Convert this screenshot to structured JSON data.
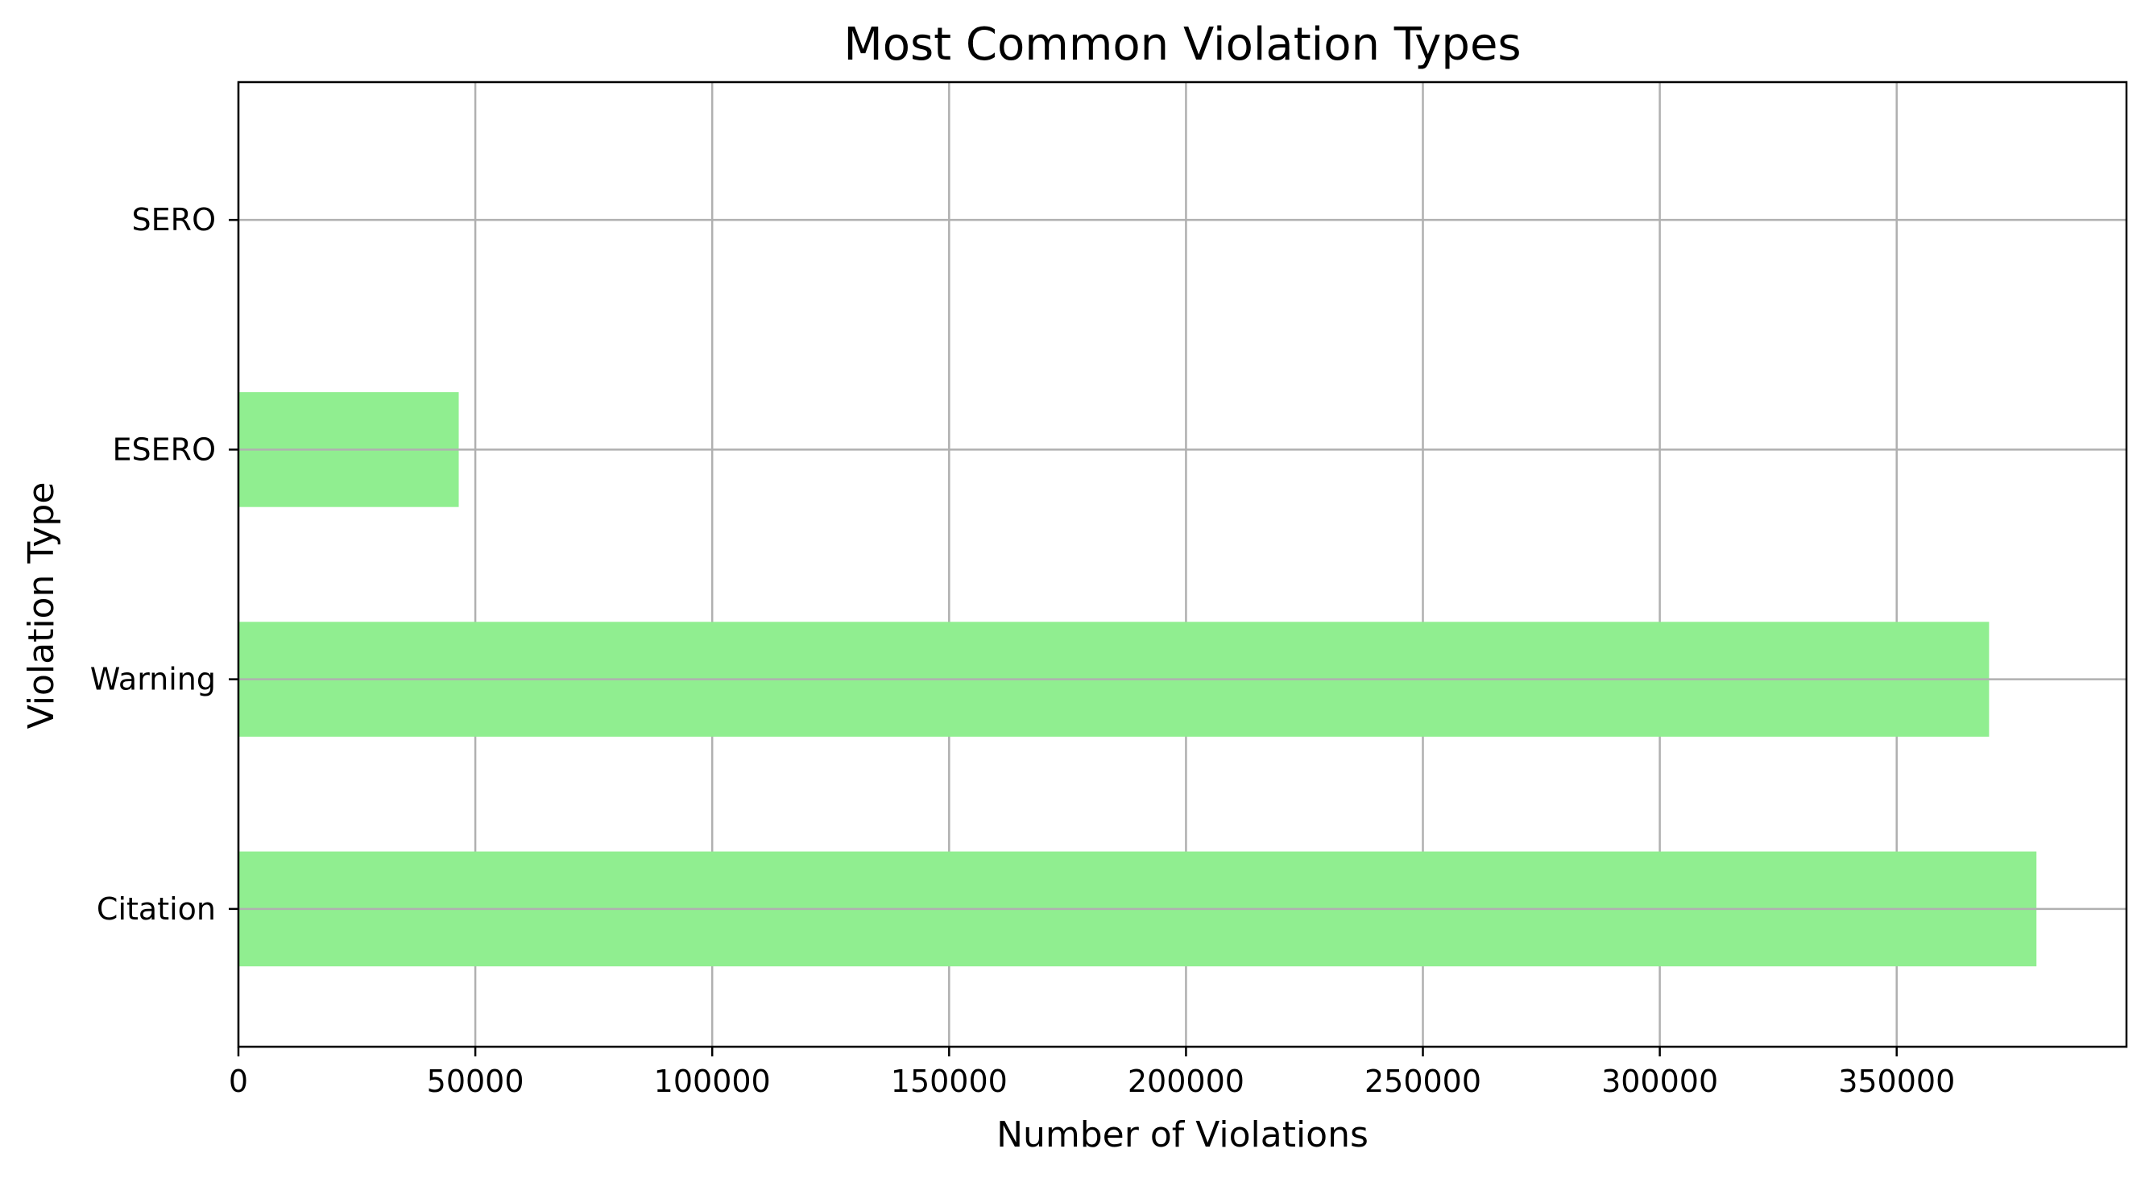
{
  "chart_data": {
    "type": "bar",
    "orientation": "horizontal",
    "title": "Most Common Violation Types",
    "xlabel": "Number of Violations",
    "ylabel": "Violation Type",
    "categories": [
      "Citation",
      "Warning",
      "ESERO",
      "SERO"
    ],
    "values": [
      379500,
      369500,
      46500,
      0
    ],
    "xlim": [
      0,
      398500
    ],
    "xticks": [
      "0",
      "50000",
      "100000",
      "150000",
      "200000",
      "250000",
      "300000",
      "350000"
    ],
    "xtick_values": [
      0,
      50000,
      100000,
      150000,
      200000,
      250000,
      300000,
      350000
    ],
    "grid": true,
    "legend": "none",
    "colors": {
      "bar": "#90ee90",
      "grid": "#b0b0b0",
      "axis": "#000000"
    }
  }
}
